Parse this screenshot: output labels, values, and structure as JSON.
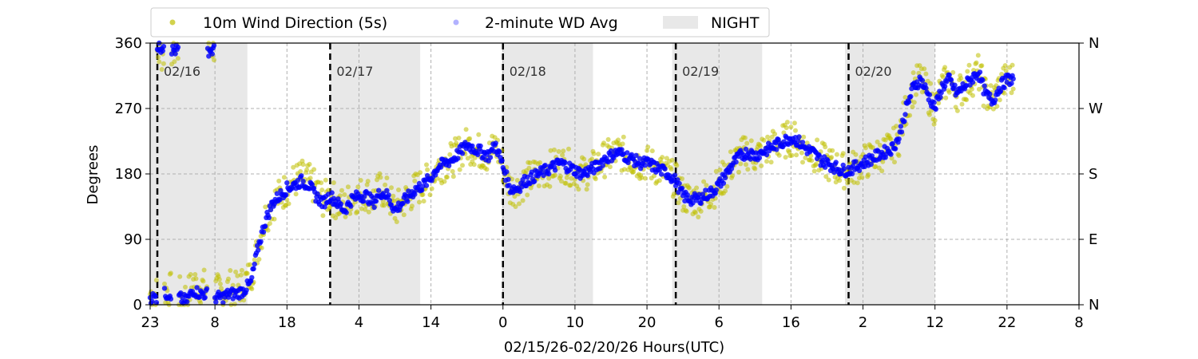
{
  "chart_data": {
    "type": "scatter",
    "xlabel": "02/15/26-02/20/26  Hours(UTC)",
    "ylabel": "Degrees",
    "ylim": [
      0,
      360
    ],
    "x_unit": "hours since 02/15 23:00 UTC",
    "xlim": [
      0,
      129
    ],
    "x_ticks": [
      {
        "pos": 0,
        "label": "23"
      },
      {
        "pos": 9,
        "label": "8"
      },
      {
        "pos": 19,
        "label": "18"
      },
      {
        "pos": 29,
        "label": "4"
      },
      {
        "pos": 39,
        "label": "14"
      },
      {
        "pos": 49,
        "label": "0"
      },
      {
        "pos": 59,
        "label": "10"
      },
      {
        "pos": 69,
        "label": "20"
      },
      {
        "pos": 79,
        "label": "6"
      },
      {
        "pos": 89,
        "label": "16"
      },
      {
        "pos": 99,
        "label": "2"
      },
      {
        "pos": 109,
        "label": "12"
      },
      {
        "pos": 119,
        "label": "22"
      },
      {
        "pos": 129,
        "label": "8"
      }
    ],
    "y_ticks_left": [
      "0",
      "90",
      "180",
      "270",
      "360"
    ],
    "y_ticks_right": [
      "N",
      "E",
      "S",
      "W",
      "N"
    ],
    "grid": true,
    "day_markers": [
      {
        "pos": 1,
        "label": "02/16"
      },
      {
        "pos": 25,
        "label": "02/17"
      },
      {
        "pos": 49,
        "label": "02/18"
      },
      {
        "pos": 73,
        "label": "02/19"
      },
      {
        "pos": 97,
        "label": "02/20"
      }
    ],
    "night_periods": [
      [
        0,
        13.5
      ],
      [
        25,
        37.5
      ],
      [
        49,
        61.5
      ],
      [
        72.5,
        85
      ],
      [
        96.5,
        109
      ]
    ],
    "legend": {
      "placement": "top (above plot)",
      "entries": [
        "10m Wind Direction (5s)",
        "2-minute WD Avg",
        "NIGHT"
      ]
    },
    "series": [
      {
        "name": "10m Wind Direction (5s)",
        "color": "#bfbf00",
        "x": [
          0,
          1,
          2,
          3,
          4,
          5,
          6,
          7,
          8,
          9,
          10,
          11,
          12,
          13,
          14,
          15,
          16,
          17,
          18,
          19,
          20,
          21,
          22,
          23,
          24,
          25,
          26,
          27,
          28,
          29,
          30,
          31,
          32,
          33,
          34,
          35,
          36,
          37,
          38,
          39,
          40,
          41,
          42,
          43,
          44,
          45,
          46,
          47,
          48,
          49,
          50,
          51,
          52,
          53,
          54,
          55,
          56,
          57,
          58,
          59,
          60,
          61,
          62,
          63,
          64,
          65,
          66,
          67,
          68,
          69,
          70,
          71,
          72,
          73,
          74,
          75,
          76,
          77,
          78,
          79,
          80,
          81,
          82,
          83,
          84,
          85,
          86,
          87,
          88,
          89,
          90,
          91,
          92,
          93,
          94,
          95,
          96,
          97,
          98,
          99,
          100,
          101,
          102,
          103,
          104,
          105,
          106,
          107,
          108,
          109,
          110,
          111,
          112,
          113,
          114,
          115,
          116,
          117,
          118,
          119
        ],
        "values": [
          15,
          345,
          20,
          350,
          15,
          10,
          30,
          25,
          355,
          20,
          15,
          25,
          20,
          30,
          40,
          80,
          120,
          140,
          150,
          160,
          170,
          175,
          170,
          160,
          145,
          150,
          140,
          135,
          150,
          150,
          155,
          145,
          160,
          150,
          130,
          140,
          150,
          160,
          165,
          175,
          190,
          195,
          200,
          210,
          220,
          215,
          210,
          205,
          220,
          190,
          160,
          160,
          170,
          175,
          180,
          185,
          190,
          195,
          190,
          185,
          180,
          185,
          190,
          200,
          205,
          210,
          205,
          200,
          195,
          195,
          190,
          185,
          180,
          170,
          150,
          145,
          145,
          150,
          155,
          165,
          180,
          195,
          205,
          210,
          205,
          210,
          215,
          220,
          225,
          230,
          225,
          215,
          210,
          200,
          195,
          190,
          185,
          185,
          190,
          195,
          200,
          205,
          210,
          215,
          230,
          270,
          300,
          310,
          290,
          270,
          300,
          310,
          290,
          300,
          310,
          320,
          290,
          280,
          300,
          310
        ]
      },
      {
        "name": "2-minute WD Avg",
        "color": "#0000ff",
        "x": [
          0,
          1,
          2,
          3,
          4,
          5,
          6,
          7,
          8,
          9,
          10,
          11,
          12,
          13,
          14,
          15,
          16,
          17,
          18,
          19,
          20,
          21,
          22,
          23,
          24,
          25,
          26,
          27,
          28,
          29,
          30,
          31,
          32,
          33,
          34,
          35,
          36,
          37,
          38,
          39,
          40,
          41,
          42,
          43,
          44,
          45,
          46,
          47,
          48,
          49,
          50,
          51,
          52,
          53,
          54,
          55,
          56,
          57,
          58,
          59,
          60,
          61,
          62,
          63,
          64,
          65,
          66,
          67,
          68,
          69,
          70,
          71,
          72,
          73,
          74,
          75,
          76,
          77,
          78,
          79,
          80,
          81,
          82,
          83,
          84,
          85,
          86,
          87,
          88,
          89,
          90,
          91,
          92,
          93,
          94,
          95,
          96,
          97,
          98,
          99,
          100,
          101,
          102,
          103,
          104,
          105,
          106,
          107,
          108,
          109,
          110,
          111,
          112,
          113,
          114,
          115,
          116,
          117,
          118,
          119
        ],
        "values": [
          10,
          355,
          15,
          350,
          10,
          5,
          20,
          15,
          350,
          10,
          10,
          15,
          15,
          20,
          30,
          80,
          115,
          140,
          150,
          160,
          165,
          170,
          165,
          150,
          140,
          150,
          140,
          130,
          145,
          150,
          150,
          140,
          155,
          150,
          130,
          140,
          150,
          160,
          165,
          175,
          190,
          195,
          200,
          210,
          220,
          215,
          210,
          205,
          220,
          190,
          160,
          160,
          170,
          175,
          180,
          185,
          190,
          195,
          190,
          185,
          180,
          185,
          190,
          200,
          205,
          210,
          205,
          200,
          195,
          195,
          190,
          185,
          180,
          170,
          150,
          145,
          145,
          150,
          155,
          165,
          180,
          195,
          205,
          210,
          205,
          210,
          215,
          220,
          225,
          230,
          225,
          215,
          210,
          200,
          195,
          190,
          185,
          185,
          190,
          195,
          200,
          205,
          210,
          215,
          230,
          270,
          300,
          310,
          290,
          270,
          300,
          310,
          290,
          300,
          310,
          320,
          290,
          280,
          300,
          310
        ]
      }
    ]
  }
}
